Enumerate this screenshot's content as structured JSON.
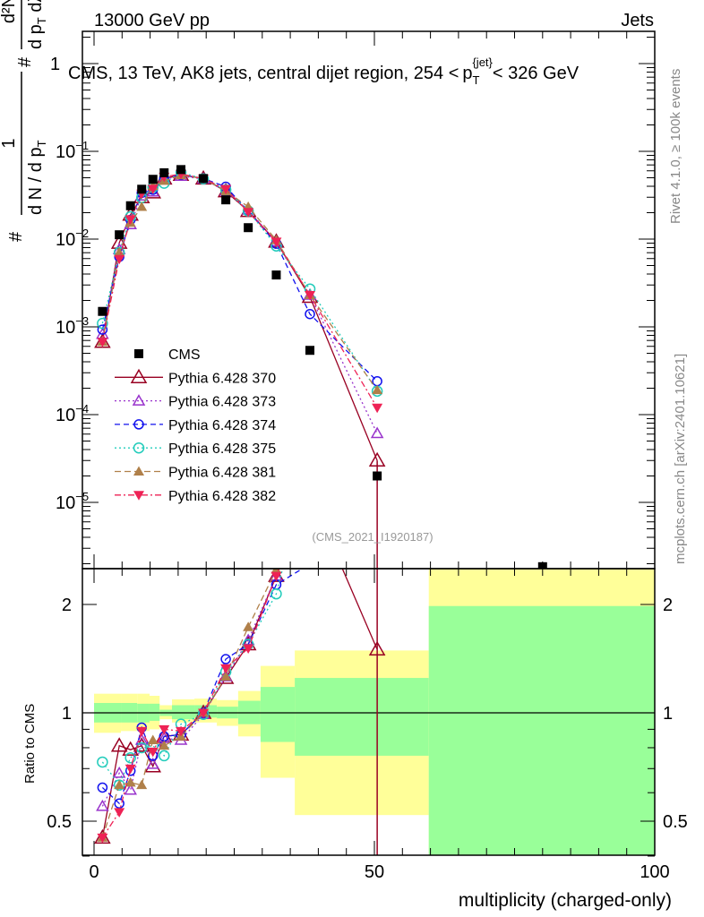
{
  "header": {
    "left": "13000 GeV pp",
    "right": "Jets"
  },
  "side_labels": {
    "rivet": "Rivet 4.1.0, ≥ 100k events",
    "mcplots": "mcplots.cern.ch [arXiv:2401.10621]"
  },
  "analysis_id": "(CMS_2021_I1920187)",
  "chart_data": {
    "type": "scatter",
    "title": "CMS, 13 TeV, AK8 jets, central dijet region, 254 < p_T^{jet} < 326 GeV",
    "title_parts": {
      "main": "CMS, 13 TeV, AK8 jets, central dijet region, 254 <",
      "p": "p",
      "sub": "T",
      "sup": "{jet}",
      "end": "< 326 GeV"
    },
    "ylabel_parts": {
      "hash1": "#",
      "num1": "1",
      "den1": "d N / d p",
      "den1_sub": "T",
      "hash2": "#",
      "num2": "d²N",
      "den2": "d p",
      "den2_sub": "T",
      "den2_end": " dλ"
    },
    "xlabel": "multiplicity (charged-only)",
    "ratio_ylabel": "Ratio to CMS",
    "xlim": [
      -2,
      100
    ],
    "ylim": [
      1.8e-06,
      2.3
    ],
    "ratio_ylim": [
      0.4,
      2.5
    ],
    "yscale": "log",
    "x_ticks": [
      "0",
      "50",
      "100"
    ],
    "y_ticks": [
      {
        "v": 1,
        "label": "1"
      },
      {
        "v": 0.1,
        "label": "10",
        "exp": "−1"
      },
      {
        "v": 0.01,
        "label": "10",
        "exp": "−2"
      },
      {
        "v": 0.001,
        "label": "10",
        "exp": "−3"
      },
      {
        "v": 0.0001,
        "label": "10",
        "exp": "−4"
      },
      {
        "v": 1e-05,
        "label": "10",
        "exp": "−5"
      }
    ],
    "ratio_ticks": [
      {
        "v": 0.5,
        "label": "0.5"
      },
      {
        "v": 1,
        "label": "1"
      },
      {
        "v": 2,
        "label": "2"
      }
    ],
    "x": [
      1.5,
      4.5,
      6.5,
      8.5,
      10.5,
      12.5,
      15.5,
      19.5,
      23.5,
      27.5,
      32.5,
      38.5,
      50.5,
      80
    ],
    "cms": {
      "name": "CMS",
      "values": [
        0.0015,
        0.0112,
        0.024,
        0.037,
        0.048,
        0.057,
        0.062,
        0.049,
        0.028,
        0.0135,
        0.0039,
        0.00054,
        2e-05,
        1.85e-06
      ]
    },
    "series_note": "MC series given as ratio to CMS; absolute value = ratio x CMS",
    "series": [
      {
        "name": "Pythia 6.428 370",
        "color": "#990022",
        "ratio": [
          0.45,
          0.81,
          0.79,
          0.81,
          0.71,
          0.86,
          0.87,
          1.0,
          1.25,
          1.55,
          2.4,
          4.07,
          1.5,
          null
        ]
      },
      {
        "name": "Pythia 6.428 373",
        "color": "#9933cc",
        "ratio": [
          0.55,
          0.68,
          0.61,
          0.84,
          0.72,
          0.85,
          0.84,
          0.99,
          1.26,
          1.59,
          2.4,
          4.26,
          3.05,
          null
        ]
      },
      {
        "name": "Pythia 6.428 374",
        "color": "#1111ee",
        "ratio": [
          0.62,
          0.56,
          0.69,
          0.91,
          0.76,
          0.86,
          0.87,
          1.0,
          1.41,
          1.55,
          2.27,
          2.59,
          12.0,
          null
        ]
      },
      {
        "name": "Pythia 6.428 375",
        "color": "#22ccbb",
        "ratio": [
          0.73,
          0.63,
          0.75,
          0.8,
          0.81,
          0.76,
          0.93,
          0.99,
          1.3,
          1.55,
          2.14,
          5.0,
          9.25,
          null
        ]
      },
      {
        "name": "Pythia 6.428 381",
        "color": "#b0804a",
        "ratio": [
          0.45,
          0.63,
          0.64,
          0.63,
          0.84,
          0.81,
          0.86,
          1.0,
          1.26,
          1.73,
          2.5,
          4.26,
          9.5,
          null
        ]
      },
      {
        "name": "Pythia 6.428 382",
        "color": "#ee2255",
        "ratio": [
          0.45,
          0.53,
          0.7,
          0.89,
          0.78,
          0.9,
          0.89,
          1.0,
          1.33,
          1.51,
          2.4,
          4.26,
          6.0,
          null
        ]
      }
    ],
    "uncertainty_bands": [
      {
        "x": [
          0,
          4.8
        ],
        "total": [
          0.88,
          1.13
        ],
        "stat": [
          0.94,
          1.065
        ]
      },
      {
        "x": [
          4.8,
          7.7
        ],
        "total": [
          0.89,
          1.13
        ],
        "stat": [
          0.94,
          1.065
        ]
      },
      {
        "x": [
          7.7,
          9.9
        ],
        "total": [
          0.89,
          1.13
        ],
        "stat": [
          0.94,
          1.06
        ]
      },
      {
        "x": [
          9.9,
          11.7
        ],
        "total": [
          0.9,
          1.115
        ],
        "stat": [
          0.95,
          1.06
        ]
      },
      {
        "x": [
          11.7,
          13.9
        ],
        "total": [
          0.96,
          1.05
        ],
        "stat": [
          0.98,
          1.02
        ]
      },
      {
        "x": [
          13.9,
          17.9
        ],
        "total": [
          0.94,
          1.09
        ],
        "stat": [
          0.96,
          1.05
        ]
      },
      {
        "x": [
          17.9,
          21.9
        ],
        "total": [
          0.94,
          1.095
        ],
        "stat": [
          0.97,
          1.05
        ]
      },
      {
        "x": [
          21.9,
          25.7
        ],
        "total": [
          0.92,
          1.085
        ],
        "stat": [
          0.965,
          1.04
        ]
      },
      {
        "x": [
          25.7,
          29.7
        ],
        "total": [
          0.86,
          1.15
        ],
        "stat": [
          0.93,
          1.08
        ]
      },
      {
        "x": [
          29.7,
          35.8
        ],
        "total": [
          0.66,
          1.35
        ],
        "stat": [
          0.83,
          1.18
        ]
      },
      {
        "x": [
          35.8,
          59.7
        ],
        "total": [
          0.52,
          1.49
        ],
        "stat": [
          0.76,
          1.25
        ]
      },
      {
        "x": [
          59.7,
          100
        ],
        "total": [
          0.3,
          3.0
        ],
        "stat": [
          0.3,
          1.98
        ]
      }
    ],
    "legend_position": "middle-left"
  }
}
